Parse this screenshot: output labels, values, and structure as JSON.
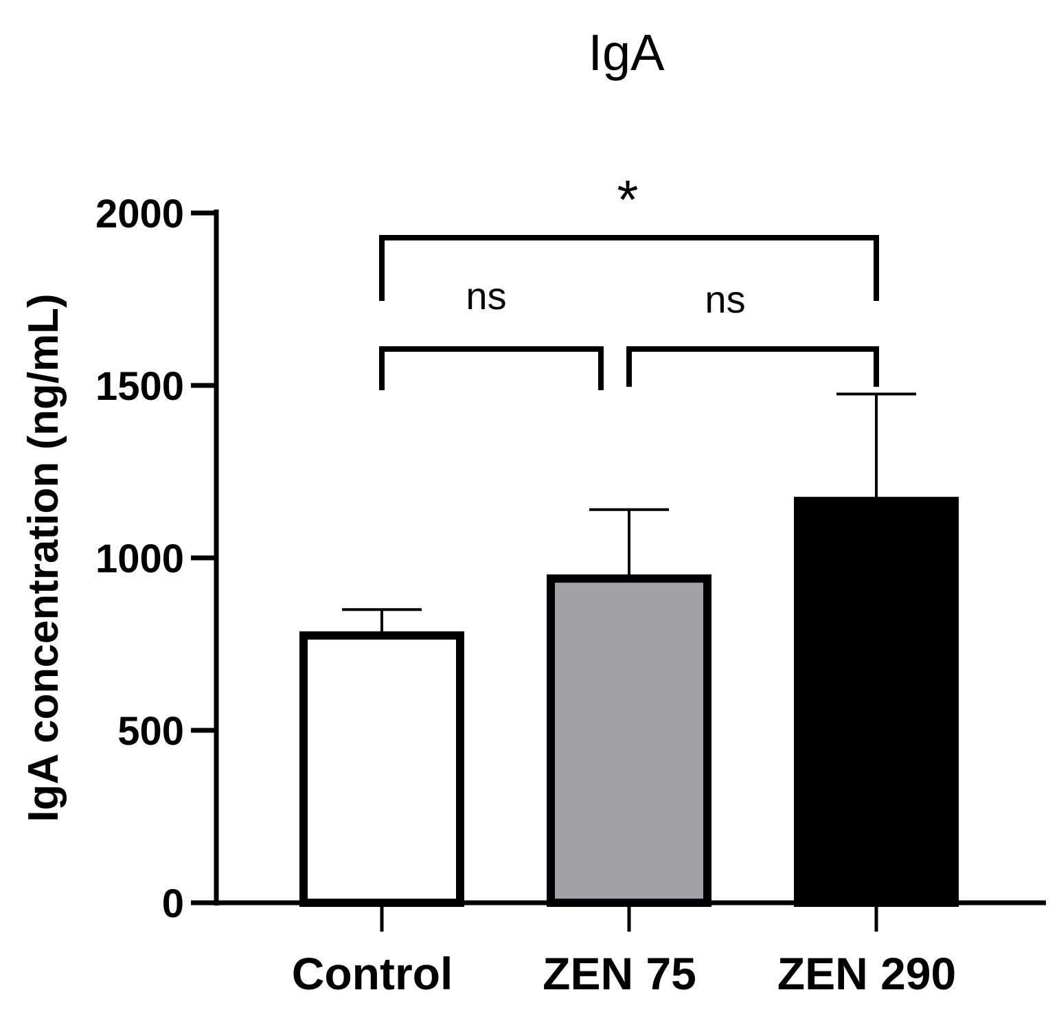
{
  "chart_data": {
    "type": "bar",
    "title": "IgA",
    "xlabel": "",
    "ylabel": "IgA concentration (ng/mL)",
    "ylim": [
      0,
      2000
    ],
    "yticks": [
      0,
      500,
      1000,
      1500,
      2000
    ],
    "categories": [
      "Control",
      "ZEN 75",
      "ZEN 290"
    ],
    "values": [
      775,
      940,
      1165
    ],
    "error_upper": [
      850,
      1140,
      1475
    ],
    "colors": [
      "#ffffff",
      "#a2a2a6",
      "#000000"
    ],
    "edge_color": "#000000",
    "grid": false,
    "legend": "none",
    "significance": [
      {
        "from": 0,
        "to": 1,
        "label": "ns"
      },
      {
        "from": 1,
        "to": 2,
        "label": "ns"
      },
      {
        "from": 0,
        "to": 2,
        "label": "*"
      }
    ]
  }
}
